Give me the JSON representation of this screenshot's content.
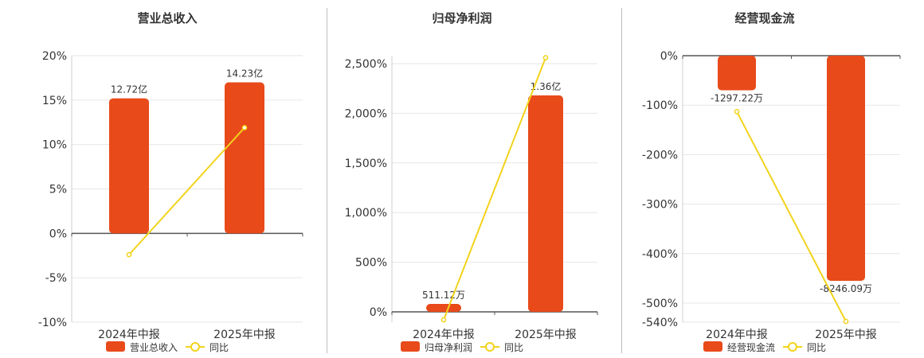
{
  "colors": {
    "bar": "#e84a1a",
    "line": "#f2d31b",
    "axis": "#555555",
    "grid": "#e6e6e6",
    "text": "#333333"
  },
  "chart_data": [
    {
      "type": "bar",
      "title": "营业总收入",
      "categories": [
        "2024年中报",
        "2025年中报"
      ],
      "series": [
        {
          "name": "营业总收入",
          "kind": "bar",
          "values": [
            15.2,
            17.0
          ],
          "labels": [
            "12.72亿",
            "14.23亿"
          ]
        },
        {
          "name": "同比",
          "kind": "line",
          "values": [
            -2.4,
            11.9
          ]
        }
      ],
      "ylim": [
        -10,
        20
      ],
      "yticks": [
        -10,
        -5,
        0,
        5,
        10,
        15,
        20
      ],
      "ytick_labels": [
        "-10%",
        "-5%",
        "0%",
        "5%",
        "10%",
        "15%",
        "20%"
      ],
      "grid": true,
      "legend": "bottom"
    },
    {
      "type": "bar",
      "title": "归母净利润",
      "categories": [
        "2024年中报",
        "2025年中报"
      ],
      "series": [
        {
          "name": "归母净利润",
          "kind": "bar",
          "values": [
            80,
            2180
          ],
          "labels": [
            "511.12万",
            "1.36亿"
          ]
        },
        {
          "name": "同比",
          "kind": "line",
          "values": [
            -80,
            2560
          ]
        }
      ],
      "ylim": [
        -90,
        2600
      ],
      "yticks": [
        0,
        500,
        1000,
        1500,
        2000,
        2500
      ],
      "ytick_labels": [
        "0%",
        "500%",
        "1,000%",
        "1,500%",
        "2,000%",
        "2,500%"
      ],
      "grid": true,
      "legend": "bottom"
    },
    {
      "type": "bar",
      "title": "经营现金流",
      "categories": [
        "2024年中报",
        "2025年中报"
      ],
      "series": [
        {
          "name": "经营现金流",
          "kind": "bar",
          "values": [
            -70,
            -455
          ],
          "labels": [
            "-1297.22万",
            "-8246.09万"
          ]
        },
        {
          "name": "同比",
          "kind": "line",
          "values": [
            -113,
            -537
          ]
        }
      ],
      "ylim": [
        -540,
        0
      ],
      "yticks": [
        -540,
        -500,
        -400,
        -300,
        -200,
        -100,
        0
      ],
      "ytick_labels": [
        "-540%",
        "-500%",
        "-400%",
        "-300%",
        "-200%",
        "-100%",
        "0%"
      ],
      "grid": true,
      "legend": "bottom"
    }
  ]
}
